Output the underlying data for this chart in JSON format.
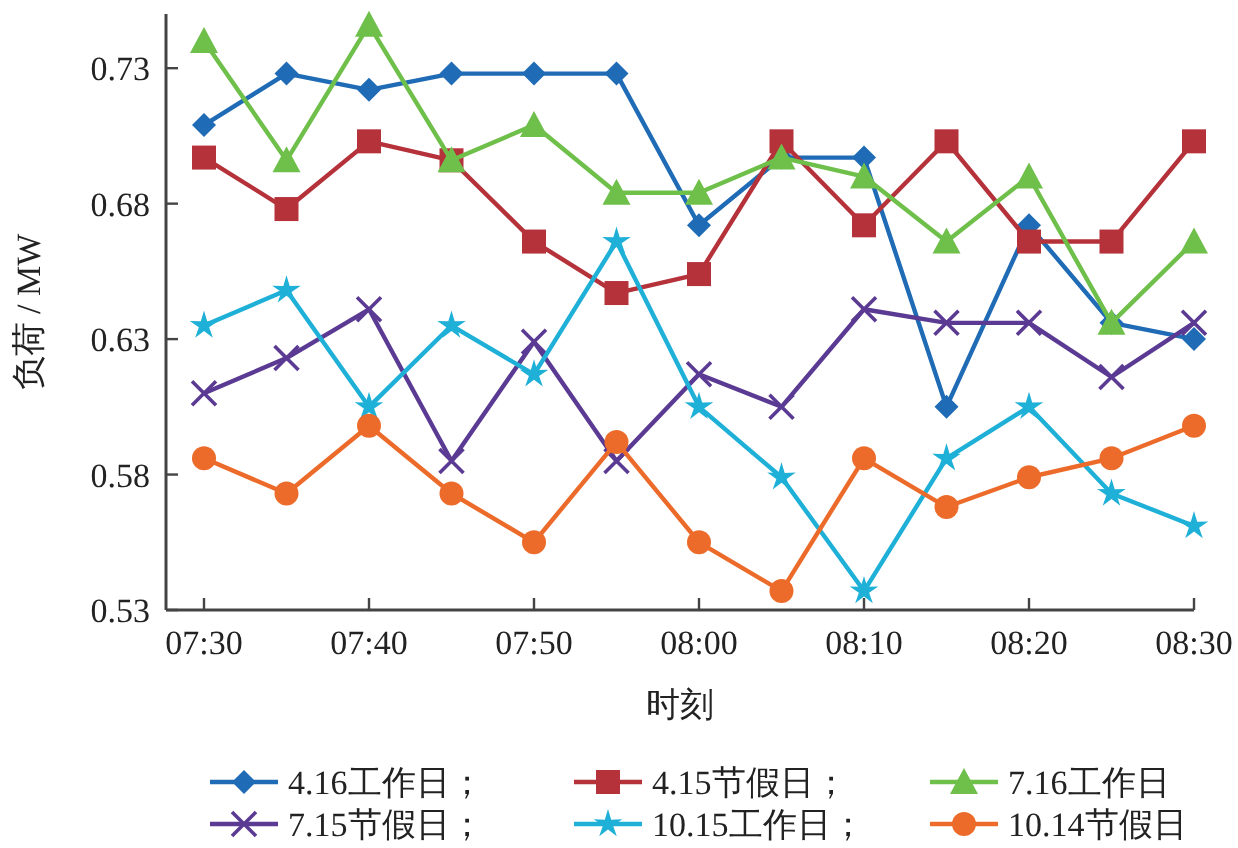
{
  "chart_data": {
    "type": "line",
    "xlabel": "时刻",
    "ylabel": "负荷 / MW",
    "categories": [
      "07:30",
      null,
      "07:40",
      null,
      "07:50",
      null,
      "08:00",
      null,
      "08:10",
      null,
      "08:20",
      null,
      "08:30"
    ],
    "ylim": [
      0.53,
      0.75
    ],
    "yticks": [
      {
        "value": 0.53,
        "label": "0.53"
      },
      {
        "value": 0.58,
        "label": "0.58"
      },
      {
        "value": 0.63,
        "label": "0.63"
      },
      {
        "value": 0.68,
        "label": "0.68"
      },
      {
        "value": 0.73,
        "label": "0.73"
      }
    ],
    "grid": false,
    "legend": "bottom",
    "line_style": "solid",
    "series": [
      {
        "name": "4.16工作日；",
        "color": "#1f6bb5",
        "marker": "diamond",
        "values": [
          0.709,
          0.728,
          0.722,
          0.728,
          0.728,
          0.728,
          0.672,
          0.697,
          0.697,
          0.605,
          0.672,
          0.636,
          0.63
        ]
      },
      {
        "name": "4.15节假日；",
        "color": "#b5323a",
        "marker": "square",
        "values": [
          0.697,
          0.678,
          0.703,
          0.696,
          0.666,
          0.647,
          0.654,
          0.703,
          0.672,
          0.703,
          0.666,
          0.666,
          0.703
        ]
      },
      {
        "name": "7.16工作日",
        "color": "#6fbf4b",
        "marker": "triangle",
        "values": [
          0.74,
          0.696,
          0.746,
          0.696,
          0.709,
          0.684,
          0.684,
          0.697,
          0.69,
          0.666,
          0.69,
          0.636,
          0.666
        ]
      },
      {
        "name": "7.15节假日；",
        "color": "#5b3a93",
        "marker": "cross",
        "values": [
          0.61,
          0.623,
          0.641,
          0.585,
          0.629,
          0.585,
          0.617,
          0.605,
          0.641,
          0.636,
          0.636,
          0.616,
          0.636
        ]
      },
      {
        "name": "10.15工作日；",
        "color": "#1fb0d8",
        "marker": "star",
        "values": [
          0.635,
          0.648,
          0.605,
          0.635,
          0.617,
          0.666,
          0.605,
          0.579,
          0.537,
          0.586,
          0.605,
          0.573,
          0.561
        ]
      },
      {
        "name": "10.14节假日",
        "color": "#ec6b2a",
        "marker": "circle",
        "values": [
          0.586,
          0.573,
          0.598,
          0.573,
          0.555,
          0.592,
          0.555,
          0.537,
          0.586,
          0.568,
          0.579,
          0.586,
          0.598
        ]
      }
    ]
  }
}
